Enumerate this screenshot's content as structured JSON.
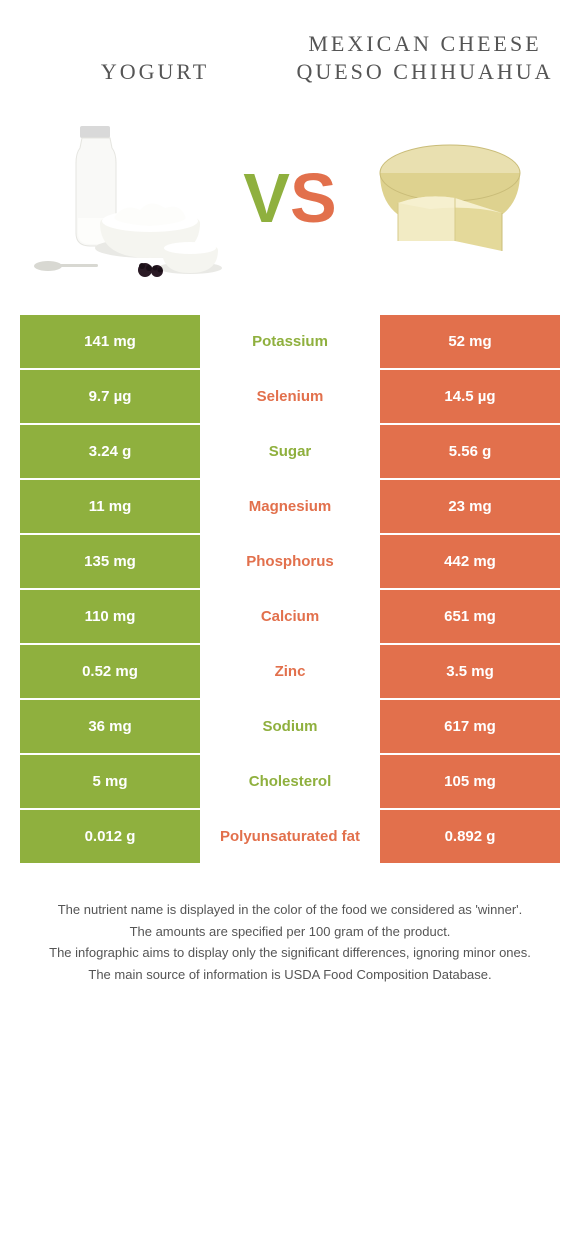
{
  "colors": {
    "green": "#8fb03e",
    "orange": "#e2704c",
    "text": "#555555",
    "white": "#ffffff"
  },
  "header": {
    "food_a": "YOGURT",
    "food_b": "MEXICAN CHEESE QUESO CHIHUAHUA",
    "vs_v": "V",
    "vs_s": "S"
  },
  "nutrients": [
    {
      "label": "Potassium",
      "left": "141 mg",
      "right": "52 mg",
      "winner": "a"
    },
    {
      "label": "Selenium",
      "left": "9.7 µg",
      "right": "14.5 µg",
      "winner": "b"
    },
    {
      "label": "Sugar",
      "left": "3.24 g",
      "right": "5.56 g",
      "winner": "a"
    },
    {
      "label": "Magnesium",
      "left": "11 mg",
      "right": "23 mg",
      "winner": "b"
    },
    {
      "label": "Phosphorus",
      "left": "135 mg",
      "right": "442 mg",
      "winner": "b"
    },
    {
      "label": "Calcium",
      "left": "110 mg",
      "right": "651 mg",
      "winner": "b"
    },
    {
      "label": "Zinc",
      "left": "0.52 mg",
      "right": "3.5 mg",
      "winner": "b"
    },
    {
      "label": "Sodium",
      "left": "36 mg",
      "right": "617 mg",
      "winner": "a"
    },
    {
      "label": "Cholesterol",
      "left": "5 mg",
      "right": "105 mg",
      "winner": "a"
    },
    {
      "label": "Polyunsaturated fat",
      "left": "0.012 g",
      "right": "0.892 g",
      "winner": "b"
    }
  ],
  "footnotes": [
    "The nutrient name is displayed in the color of the food we considered as 'winner'.",
    "The amounts are specified per 100 gram of the product.",
    "The infographic aims to display only the significant differences, ignoring minor ones.",
    "The main source of information is USDA Food Composition Database."
  ]
}
